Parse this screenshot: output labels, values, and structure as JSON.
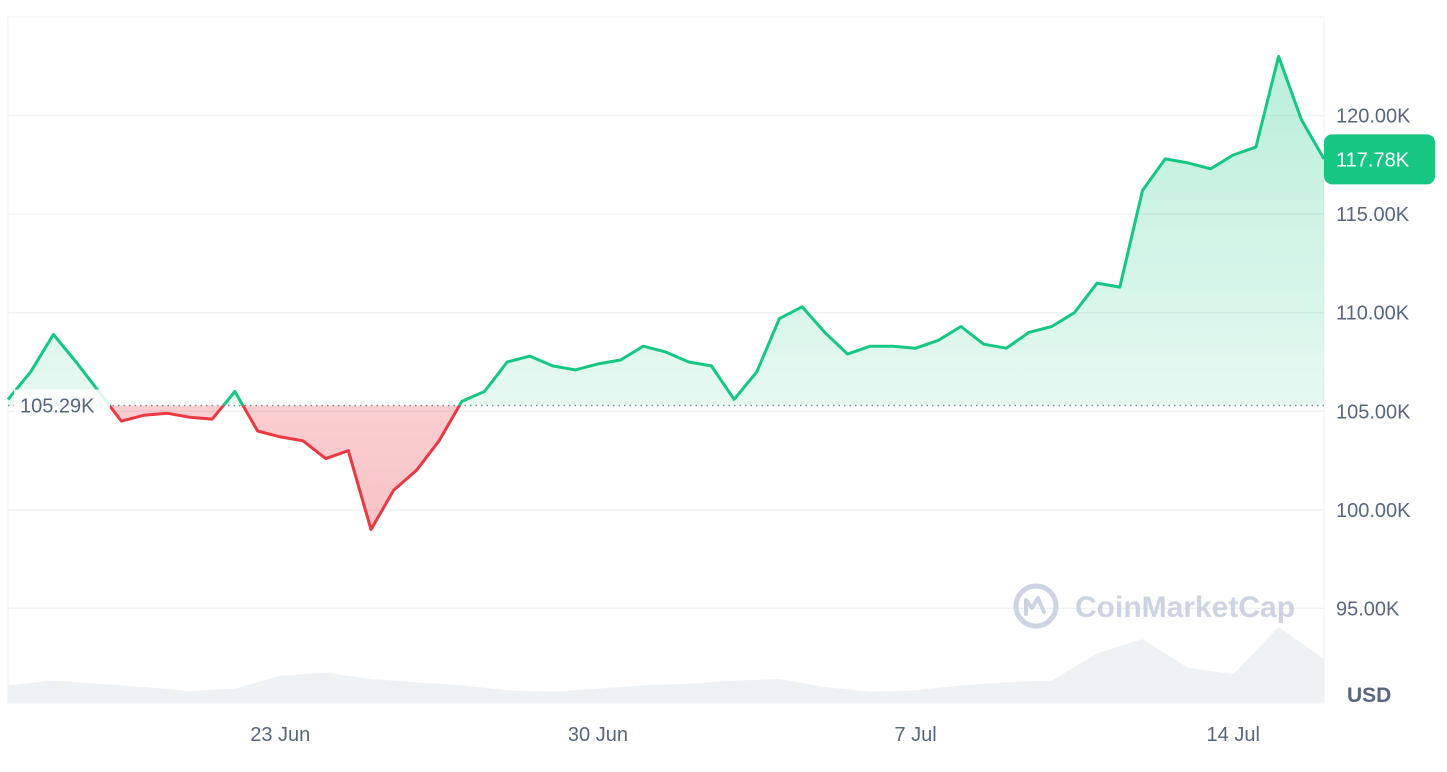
{
  "chart_data": {
    "type": "area",
    "title": "",
    "xlabel": "",
    "ylabel": "",
    "currency_label": "USD",
    "watermark": "CoinMarketCap",
    "x_ticks": [
      {
        "label": "23 Jun",
        "date": "2025-06-23"
      },
      {
        "label": "30 Jun",
        "date": "2025-06-30"
      },
      {
        "label": "7 Jul",
        "date": "2025-07-07"
      },
      {
        "label": "14 Jul",
        "date": "2025-07-14"
      }
    ],
    "y_ticks": [
      {
        "label": "95.00K",
        "value": 95000
      },
      {
        "label": "100.00K",
        "value": 100000
      },
      {
        "label": "105.00K",
        "value": 105000
      },
      {
        "label": "110.00K",
        "value": 110000
      },
      {
        "label": "115.00K",
        "value": 115000
      },
      {
        "label": "120.00K",
        "value": 120000
      }
    ],
    "ylim": [
      90200,
      125000
    ],
    "xlim": [
      "2025-06-17",
      "2025-07-16"
    ],
    "reference": {
      "value": 105290,
      "label": "105.29K"
    },
    "current": {
      "value": 117780,
      "label": "117.78K"
    },
    "grid": true,
    "colors": {
      "up": "#16c784",
      "down": "#ea3943",
      "grid": "#eff2f5",
      "label": "#58667e",
      "badge_text": "#ffffff"
    },
    "series": [
      {
        "x": [
          "2025-06-17",
          "2025-06-17T12:00",
          "2025-06-18",
          "2025-06-18T12:00",
          "2025-06-19",
          "2025-06-19T12:00",
          "2025-06-20",
          "2025-06-20T12:00",
          "2025-06-21",
          "2025-06-21T12:00",
          "2025-06-22",
          "2025-06-22T12:00",
          "2025-06-23",
          "2025-06-23T12:00",
          "2025-06-24",
          "2025-06-24T12:00",
          "2025-06-25",
          "2025-06-25T12:00",
          "2025-06-26",
          "2025-06-26T12:00",
          "2025-06-27",
          "2025-06-27T12:00",
          "2025-06-28",
          "2025-06-28T12:00",
          "2025-06-29",
          "2025-06-29T12:00",
          "2025-06-30",
          "2025-06-30T12:00",
          "2025-07-01",
          "2025-07-01T12:00",
          "2025-07-02",
          "2025-07-02T12:00",
          "2025-07-03",
          "2025-07-03T12:00",
          "2025-07-04",
          "2025-07-04T12:00",
          "2025-07-05",
          "2025-07-05T12:00",
          "2025-07-06",
          "2025-07-06T12:00",
          "2025-07-07",
          "2025-07-07T12:00",
          "2025-07-08",
          "2025-07-08T12:00",
          "2025-07-09",
          "2025-07-09T12:00",
          "2025-07-10",
          "2025-07-10T12:00",
          "2025-07-11",
          "2025-07-11T12:00",
          "2025-07-12",
          "2025-07-12T12:00",
          "2025-07-13",
          "2025-07-13T12:00",
          "2025-07-14",
          "2025-07-14T12:00",
          "2025-07-15",
          "2025-07-15T12:00",
          "2025-07-16"
        ],
        "values": [
          105600,
          107000,
          108900,
          107500,
          106000,
          104500,
          104800,
          104900,
          104700,
          104600,
          106000,
          104000,
          103700,
          103500,
          102600,
          103000,
          99000,
          101000,
          102000,
          103500,
          105500,
          106000,
          107500,
          107800,
          107300,
          107100,
          107400,
          107600,
          108300,
          108000,
          107500,
          107300,
          105600,
          107000,
          109700,
          110300,
          109000,
          107900,
          108300,
          108300,
          108200,
          108600,
          109300,
          108400,
          108200,
          109000,
          109300,
          110000,
          111500,
          111300,
          116200,
          117800,
          117600,
          117300,
          118000,
          118400,
          123000,
          119800,
          117800
        ]
      }
    ],
    "volume_series": {
      "x": [
        "2025-06-17",
        "2025-06-18",
        "2025-06-19",
        "2025-06-20",
        "2025-06-21",
        "2025-06-22",
        "2025-06-23",
        "2025-06-24",
        "2025-06-25",
        "2025-06-26",
        "2025-06-27",
        "2025-06-28",
        "2025-06-29",
        "2025-06-30",
        "2025-07-01",
        "2025-07-02",
        "2025-07-03",
        "2025-07-04",
        "2025-07-05",
        "2025-07-06",
        "2025-07-07",
        "2025-07-08",
        "2025-07-09",
        "2025-07-10",
        "2025-07-11",
        "2025-07-12",
        "2025-07-13",
        "2025-07-14",
        "2025-07-15",
        "2025-07-16"
      ],
      "values": [
        0.22,
        0.28,
        0.24,
        0.2,
        0.15,
        0.18,
        0.34,
        0.38,
        0.3,
        0.26,
        0.22,
        0.16,
        0.14,
        0.18,
        0.22,
        0.24,
        0.28,
        0.3,
        0.2,
        0.14,
        0.16,
        0.22,
        0.26,
        0.28,
        0.62,
        0.8,
        0.44,
        0.36,
        0.95,
        0.55
      ]
    }
  }
}
